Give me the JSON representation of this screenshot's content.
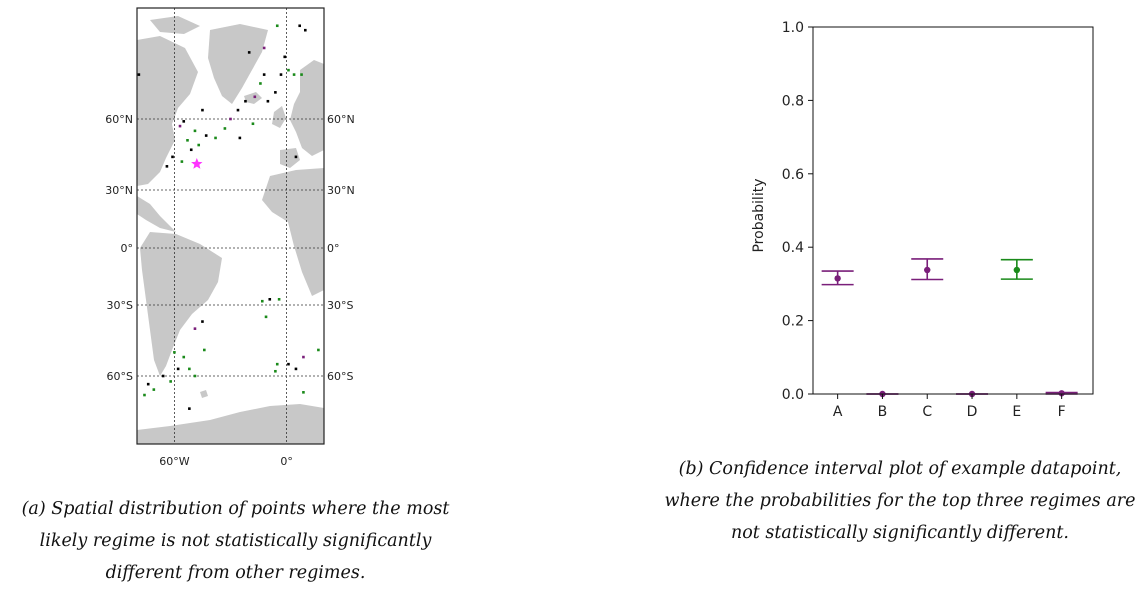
{
  "captions": {
    "a": "(a) Spatial distribution of points where the most likely regime is not statistically significantly different from other regimes.",
    "b": "(b) Confidence interval plot of example datapoint, where the probabilities for the top three regimes are not statistically significantly different."
  },
  "map": {
    "lat_labels": [
      "60°N",
      "30°N",
      "0°",
      "30°S",
      "60°S"
    ],
    "lon_labels": [
      "60°W",
      "0°"
    ],
    "lats": [
      60,
      30,
      0,
      -30,
      -60
    ],
    "lons": [
      -60,
      0
    ],
    "extent": {
      "lon": [
        -80,
        20
      ],
      "lat": [
        -85,
        85
      ]
    },
    "colors": {
      "land": "#c8c8c8",
      "ocean": "#ffffff",
      "black": "#000000",
      "green": "#1a8a1a",
      "purple": "#7a1f7a",
      "star": "#ff33ff"
    },
    "star": {
      "lon": -48,
      "lat": 41,
      "icon": "star-marker"
    },
    "points": [
      {
        "lon": -5,
        "lat": 81,
        "c": "green"
      },
      {
        "lon": 10,
        "lat": 80,
        "c": "black"
      },
      {
        "lon": 7,
        "lat": 81,
        "c": "black"
      },
      {
        "lon": -12,
        "lat": 76,
        "c": "purple"
      },
      {
        "lon": -20,
        "lat": 75,
        "c": "black"
      },
      {
        "lon": -1,
        "lat": 74,
        "c": "black"
      },
      {
        "lon": 1,
        "lat": 71,
        "c": "green"
      },
      {
        "lon": 4,
        "lat": 70,
        "c": "green"
      },
      {
        "lon": 8,
        "lat": 70,
        "c": "green"
      },
      {
        "lon": -3,
        "lat": 70,
        "c": "black"
      },
      {
        "lon": -12,
        "lat": 70,
        "c": "black"
      },
      {
        "lon": -14,
        "lat": 68,
        "c": "green"
      },
      {
        "lon": -6,
        "lat": 66,
        "c": "black"
      },
      {
        "lon": -10,
        "lat": 64,
        "c": "black"
      },
      {
        "lon": -17,
        "lat": 65,
        "c": "purple"
      },
      {
        "lon": -22,
        "lat": 64,
        "c": "black"
      },
      {
        "lon": -26,
        "lat": 62,
        "c": "black"
      },
      {
        "lon": -30,
        "lat": 60,
        "c": "purple"
      },
      {
        "lon": -45,
        "lat": 62,
        "c": "black"
      },
      {
        "lon": -55,
        "lat": 59,
        "c": "black"
      },
      {
        "lon": -57,
        "lat": 57,
        "c": "purple"
      },
      {
        "lon": -49,
        "lat": 55,
        "c": "green"
      },
      {
        "lon": -43,
        "lat": 53,
        "c": "black"
      },
      {
        "lon": -53,
        "lat": 51,
        "c": "green"
      },
      {
        "lon": -47,
        "lat": 49,
        "c": "green"
      },
      {
        "lon": -51,
        "lat": 47,
        "c": "black"
      },
      {
        "lon": -38,
        "lat": 52,
        "c": "green"
      },
      {
        "lon": -33,
        "lat": 56,
        "c": "green"
      },
      {
        "lon": -25,
        "lat": 52,
        "c": "black"
      },
      {
        "lon": -18,
        "lat": 58,
        "c": "green"
      },
      {
        "lon": -61,
        "lat": 44,
        "c": "black"
      },
      {
        "lon": -64,
        "lat": 40,
        "c": "black"
      },
      {
        "lon": -79,
        "lat": 70,
        "c": "black"
      },
      {
        "lon": 5,
        "lat": 44,
        "c": "black"
      },
      {
        "lon": -56,
        "lat": 42,
        "c": "green"
      },
      {
        "lon": -13,
        "lat": -28,
        "c": "green"
      },
      {
        "lon": -9,
        "lat": -27,
        "c": "black"
      },
      {
        "lon": -4,
        "lat": -27,
        "c": "green"
      },
      {
        "lon": -11,
        "lat": -35,
        "c": "green"
      },
      {
        "lon": -45,
        "lat": -37,
        "c": "black"
      },
      {
        "lon": -49,
        "lat": -40,
        "c": "purple"
      },
      {
        "lon": -60,
        "lat": -50,
        "c": "green"
      },
      {
        "lon": -55,
        "lat": -52,
        "c": "green"
      },
      {
        "lon": -52,
        "lat": -57,
        "c": "green"
      },
      {
        "lon": -58,
        "lat": -57,
        "c": "black"
      },
      {
        "lon": -49,
        "lat": -60,
        "c": "green"
      },
      {
        "lon": -62,
        "lat": -62,
        "c": "green"
      },
      {
        "lon": -71,
        "lat": -65,
        "c": "green"
      },
      {
        "lon": -76,
        "lat": -67,
        "c": "green"
      },
      {
        "lon": -74,
        "lat": -63,
        "c": "black"
      },
      {
        "lon": -66,
        "lat": -60,
        "c": "black"
      },
      {
        "lon": -44,
        "lat": -49,
        "c": "green"
      },
      {
        "lon": -5,
        "lat": -55,
        "c": "green"
      },
      {
        "lon": -6,
        "lat": -58,
        "c": "green"
      },
      {
        "lon": 1,
        "lat": -55,
        "c": "black"
      },
      {
        "lon": 5,
        "lat": -57,
        "c": "black"
      },
      {
        "lon": 9,
        "lat": -52,
        "c": "purple"
      },
      {
        "lon": 17,
        "lat": -49,
        "c": "green"
      },
      {
        "lon": 9,
        "lat": -66,
        "c": "green"
      },
      {
        "lon": -52,
        "lat": -72,
        "c": "black"
      }
    ]
  },
  "chart_data": {
    "type": "errorbar",
    "categories": [
      "A",
      "B",
      "C",
      "D",
      "E",
      "F"
    ],
    "values": [
      0.315,
      0.0,
      0.338,
      0.0,
      0.338,
      0.002
    ],
    "lower": [
      0.298,
      0.0,
      0.312,
      0.0,
      0.313,
      0.0
    ],
    "upper": [
      0.335,
      0.0,
      0.368,
      0.0,
      0.366,
      0.004
    ],
    "colors": [
      "#7a1f7a",
      "#7a1f7a",
      "#7a1f7a",
      "#7a1f7a",
      "#1a8a1a",
      "#7a1f7a"
    ],
    "title": "",
    "xlabel": "",
    "ylabel": "Probability",
    "ylim": [
      0.0,
      1.0
    ],
    "yticks": [
      0.0,
      0.2,
      0.4,
      0.6,
      0.8,
      1.0
    ],
    "ytick_labels": [
      "0.0",
      "0.2",
      "0.4",
      "0.6",
      "0.8",
      "1.0"
    ],
    "grid": false
  }
}
